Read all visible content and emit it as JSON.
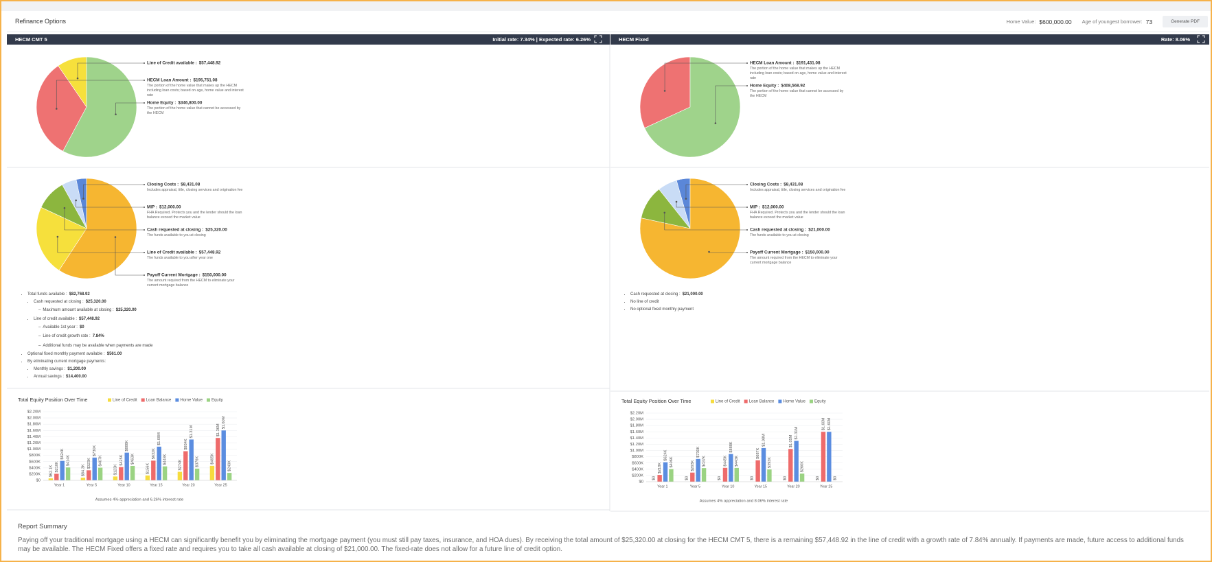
{
  "header": {
    "title": "Refinance Options",
    "home_value_label": "Home Value:",
    "home_value": "$600,000.00",
    "age_label": "Age of youngest borrower:",
    "age": "73",
    "button": "Generate PDF"
  },
  "panels": [
    {
      "title": "HECM CMT 5",
      "rate": "Initial rate: 7.34% | Expected rate: 6.26%",
      "bullets": [
        {
          "text": "Total funds available :",
          "value": "$82,768.92",
          "children": [
            {
              "text": "Cash requested at closing :",
              "value": "$25,320.00",
              "children": [
                {
                  "text": "Maximum amount available at closing :",
                  "value": "$25,320.00"
                }
              ]
            },
            {
              "text": "Line of credit available :",
              "value": "$57,448.92",
              "children": [
                {
                  "text": "Available 1st year :",
                  "value": "$0"
                },
                {
                  "text": "Line of credit growth rate :",
                  "value": "7.84%"
                },
                {
                  "text": "Additional funds may be available when payments are made"
                }
              ]
            }
          ]
        },
        {
          "text": "Optional fixed monthly payment available :",
          "value": "$561.00"
        },
        {
          "text": "By eliminating current mortgage payments:",
          "children": [
            {
              "text": "Monthly savings :",
              "value": "$1,200.00"
            },
            {
              "text": "Annual savings :",
              "value": "$14,400.00"
            }
          ]
        }
      ]
    },
    {
      "title": "HECM Fixed",
      "rate": "Rate: 8.06%",
      "bullets": [
        {
          "text": "Cash requested at closing :",
          "value": "$21,000.00"
        },
        {
          "text": "No line of credit"
        },
        {
          "text": "No optional fixed monthly payment"
        }
      ]
    }
  ],
  "chart_data": [
    {
      "type": "pie",
      "categories": [
        "Line of Credit available :",
        "HECM Loan Amount :",
        "Home Equity :"
      ],
      "values": [
        57448.92,
        195751.08,
        346800.0
      ],
      "value_labels": [
        "$57,448.92",
        "$195,751.08",
        "$346,800.00"
      ],
      "descriptions": [
        null,
        "The portion of the home value that makes up the HECM including loan costs; based on age, home value and interest rate",
        "The portion of the home value that cannot be accessed by the HECM"
      ],
      "colors": [
        "#f6e03c",
        "#ee7272",
        "#9fd38b"
      ]
    },
    {
      "type": "pie",
      "categories": [
        "Closing Costs :",
        "MIP :",
        "Cash requested at closing :",
        "Line of Credit available :",
        "Payoff Current Mortgage :"
      ],
      "values": [
        8431.08,
        12000,
        25320,
        57448.92,
        150000
      ],
      "value_labels": [
        "$8,431.08",
        "$12,000.00",
        "$25,320.00",
        "$57,448.92",
        "$150,000.00"
      ],
      "descriptions": [
        "Includes appraisal, title, closing services and origination fee",
        "FHA Required. Protects you and the lender should the loan balance exceed the market value",
        "The funds available to you at closing",
        "The funds available to you after year one",
        "The amount required from the HECM to eliminate your current mortgage balance"
      ],
      "colors": [
        "#5b87d8",
        "#c9dcf6",
        "#8cb63e",
        "#f6e03c",
        "#f6b631"
      ]
    },
    {
      "type": "bar",
      "title": "Total Equity Position Over Time",
      "categories": [
        "Year 1",
        "Year 5",
        "Year 10",
        "Year 15",
        "Year 20",
        "Year 25"
      ],
      "series": [
        {
          "name": "Line of Credit",
          "color": "#f6dc3e",
          "values": [
            62100,
            84300,
            123000,
            156000,
            274000,
            465000
          ],
          "value_labels": [
            "$62.1K",
            "$84.3K",
            "$123K",
            "$156K",
            "$274K",
            "$465K"
          ]
        },
        {
          "name": "Loan Balance",
          "color": "#ee6b6b",
          "values": [
            210000,
            323000,
            425000,
            632000,
            934000,
            1360000
          ],
          "value_labels": [
            "$210K",
            "$323K",
            "$425K",
            "$632K",
            "$934K",
            "$1.36M"
          ]
        },
        {
          "name": "Home Value",
          "color": "#5b8de0",
          "values": [
            624000,
            730000,
            888000,
            1080000,
            1310000,
            1600000
          ],
          "value_labels": [
            "$624K",
            "$730K",
            "$888K",
            "$1.08M",
            "$1.31M",
            "$1.60M"
          ]
        },
        {
          "name": "Equity",
          "color": "#9bd383",
          "values": [
            414000,
            407000,
            463000,
            448000,
            376000,
            240000
          ],
          "value_labels": [
            "$414K",
            "$407K",
            "$463K",
            "$448K",
            "$376K",
            "$240K"
          ]
        }
      ],
      "ylim": [
        0,
        2200000
      ],
      "yticks": [
        {
          "value": 0,
          "label": "$0"
        },
        {
          "value": 200000,
          "label": "$200K"
        },
        {
          "value": 400000,
          "label": "$400K"
        },
        {
          "value": 600000,
          "label": "$600K"
        },
        {
          "value": 800000,
          "label": "$800K"
        },
        {
          "value": 1000000,
          "label": "$1.00M"
        },
        {
          "value": 1200000,
          "label": "$1.20M"
        },
        {
          "value": 1400000,
          "label": "$1.40M"
        },
        {
          "value": 1600000,
          "label": "$1.60M"
        },
        {
          "value": 1800000,
          "label": "$1.80M"
        },
        {
          "value": 2000000,
          "label": "$2.00M"
        },
        {
          "value": 2200000,
          "label": "$2.20M"
        }
      ],
      "grid": true,
      "note": "Assumes 4% appreciation and 6.26% interest rate"
    },
    {
      "type": "pie",
      "categories": [
        "HECM Loan Amount :",
        "Home Equity :"
      ],
      "values": [
        191431.08,
        408568.92
      ],
      "value_labels": [
        "$191,431.08",
        "$408,568.92"
      ],
      "descriptions": [
        "The portion of the home value that makes up the HECM including loan costs; based on age, home value and interest rate",
        "The portion of the home value that cannot be accessed by the HECM"
      ],
      "colors": [
        "#ee7272",
        "#9fd38b"
      ]
    },
    {
      "type": "pie",
      "categories": [
        "Closing Costs :",
        "MIP :",
        "Cash requested at closing :",
        "Payoff Current Mortgage :"
      ],
      "values": [
        8431.08,
        12000,
        21000,
        150000
      ],
      "value_labels": [
        "$8,431.08",
        "$12,000.00",
        "$21,000.00",
        "$150,000.00"
      ],
      "descriptions": [
        "Includes appraisal, title, closing services and origination fee",
        "FHA Required. Protects you and the lender should the loan balance exceed the market value",
        "The funds available to you at closing",
        "The amount required from the HECM to eliminate your current mortgage balance"
      ],
      "colors": [
        "#5b87d8",
        "#c9dcf6",
        "#8cb63e",
        "#f6b631"
      ]
    },
    {
      "type": "bar",
      "title": "Total Equity Position Over Time",
      "categories": [
        "Year 1",
        "Year 5",
        "Year 10",
        "Year 15",
        "Year 20",
        "Year 25"
      ],
      "series": [
        {
          "name": "Line of Credit",
          "color": "#f6dc3e",
          "values": [
            0,
            0,
            0,
            0,
            0,
            0
          ],
          "value_labels": [
            "$0",
            "$0",
            "$0",
            "$0",
            "$0",
            "$0"
          ]
        },
        {
          "name": "Loan Balance",
          "color": "#ee6b6b",
          "values": [
            218000,
            293000,
            445000,
            687000,
            1050000,
            1600000
          ],
          "value_labels": [
            "$218K",
            "$293K",
            "$445K",
            "$687K",
            "$1.05M",
            "$1.60M"
          ]
        },
        {
          "name": "Home Value",
          "color": "#5b8de0",
          "values": [
            624000,
            730000,
            888000,
            1080000,
            1310000,
            1600000
          ],
          "value_labels": [
            "$624K",
            "$730K",
            "$888K",
            "$1.08M",
            "$1.31M",
            "$1.60M"
          ]
        },
        {
          "name": "Equity",
          "color": "#9bd383",
          "values": [
            406000,
            437000,
            443000,
            393000,
            260000,
            0
          ],
          "value_labels": [
            "$406K",
            "$437K",
            "$443K",
            "$393K",
            "$260K",
            "$0"
          ]
        }
      ],
      "ylim": [
        0,
        2200000
      ],
      "yticks": [
        {
          "value": 0,
          "label": "$0"
        },
        {
          "value": 200000,
          "label": "$200K"
        },
        {
          "value": 400000,
          "label": "$400K"
        },
        {
          "value": 600000,
          "label": "$600K"
        },
        {
          "value": 800000,
          "label": "$800K"
        },
        {
          "value": 1000000,
          "label": "$1.00M"
        },
        {
          "value": 1200000,
          "label": "$1.20M"
        },
        {
          "value": 1400000,
          "label": "$1.40M"
        },
        {
          "value": 1600000,
          "label": "$1.60M"
        },
        {
          "value": 1800000,
          "label": "$1.80M"
        },
        {
          "value": 2000000,
          "label": "$2.00M"
        },
        {
          "value": 2200000,
          "label": "$2.20M"
        }
      ],
      "grid": true,
      "note": "Assumes 4% appreciation and 8.06% interest rate"
    }
  ],
  "summary": {
    "title": "Report Summary",
    "text": "Paying off your traditional mortgage using a HECM can significantly benefit you by eliminating the mortgage payment (you must still pay taxes, insurance, and HOA dues). By receiving the total amount of $25,320.00 at closing for the HECM CMT 5, there is a remaining $57,448.92 in the line of credit with a growth rate of 7.84% annually. If payments are made, future access to additional funds may be available. The HECM Fixed offers a fixed rate and requires you to take all cash available at closing of $21,000.00. The fixed-rate does not allow for a future line of credit option."
  }
}
